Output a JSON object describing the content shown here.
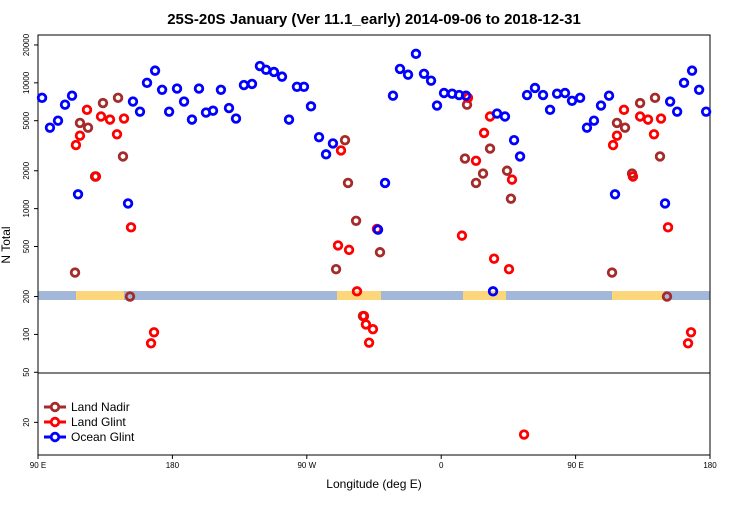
{
  "chart_data": {
    "type": "scatter",
    "title": "25S-20S January (Ver 11.1_early)   2014-09-06 to 2018-12-31",
    "x_label": "Longitude (deg E)",
    "y_label": "N Total",
    "xlim": [
      90,
      540
    ],
    "ylim": [
      11,
      24000
    ],
    "log_y": true,
    "legend": "bottom left",
    "xticks": [
      {
        "value": 90,
        "label": "90 E"
      },
      180,
      {
        "value": 270,
        "label": "90 W"
      },
      {
        "value": 360,
        "label": "0"
      },
      {
        "value": 450,
        "label": "90 E"
      },
      {
        "value": 540,
        "label": "180"
      }
    ],
    "yticks": [
      20,
      50,
      100,
      200,
      500,
      1000,
      2000,
      5000,
      10000,
      20000
    ],
    "series": [
      {
        "name": "Land Nadir",
        "color": "#a52a2a",
        "x": [
          114.8,
          118.1,
          123.5,
          128.2,
          133.5,
          143.6,
          146.9,
          151.6,
          295.6,
          297.6,
          303.0,
          289.6,
          307.6,
          319.0,
          377.3,
          375.9,
          383.3,
          388.0,
          392.7,
          404.1,
          406.7,
          474.4,
          477.7,
          483.1,
          487.8,
          493.2,
          503.2,
          506.5,
          511.2
        ],
        "values": [
          310,
          4800,
          4400,
          1800,
          6900,
          7600,
          2600,
          200,
          3500,
          1600,
          800,
          330,
          140,
          450,
          6700,
          2500,
          1600,
          1900,
          3000,
          2000,
          1200,
          310,
          4800,
          4400,
          1900,
          6900,
          7600,
          2600,
          200
        ]
      },
      {
        "name": "Land Glint",
        "color": "#ff0000",
        "x": [
          115.4,
          118.1,
          122.8,
          128.8,
          132.2,
          138.2,
          142.9,
          147.6,
          152.3,
          165.7,
          167.7,
          292.9,
          290.9,
          298.3,
          303.6,
          308.3,
          309.6,
          311.7,
          314.3,
          317.0,
          373.9,
          377.9,
          383.3,
          388.7,
          392.7,
          395.4,
          405.4,
          407.4,
          415.5,
          475.1,
          477.7,
          482.4,
          488.4,
          493.2,
          498.5,
          502.5,
          507.2,
          511.9,
          525.3,
          527.3
        ],
        "values": [
          3200,
          3800,
          6100,
          1800,
          5400,
          5100,
          3900,
          5200,
          710,
          85,
          104,
          2900,
          510,
          470,
          220,
          140,
          120,
          86,
          110,
          690,
          610,
          7600,
          2400,
          4000,
          5400,
          400,
          330,
          1700,
          16,
          3200,
          3800,
          6100,
          1800,
          5400,
          5100,
          3900,
          5200,
          710,
          85,
          104
        ]
      },
      {
        "name": "Ocean Glint",
        "color": "#0000ff",
        "x": [
          92.7,
          98.0,
          103.4,
          108.1,
          112.8,
          116.8,
          150.3,
          153.6,
          158.3,
          163.0,
          168.4,
          173.1,
          177.8,
          183.1,
          187.8,
          193.1,
          197.8,
          202.5,
          207.2,
          212.5,
          217.9,
          222.6,
          227.9,
          233.3,
          238.6,
          242.7,
          248.0,
          253.4,
          258.1,
          263.4,
          268.1,
          272.8,
          278.2,
          282.9,
          287.5,
          317.7,
          322.4,
          327.7,
          332.4,
          337.8,
          343.1,
          348.5,
          353.2,
          357.2,
          361.9,
          367.3,
          372.0,
          376.6,
          394.7,
          397.4,
          402.7,
          408.8,
          412.8,
          417.5,
          422.8,
          428.2,
          432.9,
          437.6,
          442.9,
          447.6,
          453.0,
          457.6,
          462.3,
          467.0,
          472.4,
          476.4,
          509.9,
          513.3,
          518.0,
          522.6,
          528.0,
          532.7,
          537.4
        ],
        "values": [
          7600,
          4400,
          5000,
          6700,
          7900,
          1300,
          1100,
          7100,
          5900,
          10000,
          12500,
          8800,
          5900,
          9000,
          7100,
          5100,
          9000,
          5800,
          6000,
          8800,
          6300,
          5200,
          9600,
          9800,
          13600,
          12700,
          12200,
          11200,
          5100,
          9300,
          9300,
          6500,
          3700,
          2700,
          3300,
          680,
          1600,
          7900,
          12900,
          11600,
          17000,
          11800,
          10400,
          6600,
          8300,
          8200,
          8000,
          7900,
          220,
          5700,
          5400,
          3500,
          2600,
          8000,
          9100,
          8000,
          6100,
          8200,
          8300,
          7200,
          7600,
          4400,
          5000,
          6600,
          7900,
          1300,
          1100,
          7100,
          5900,
          10000,
          12500,
          8800,
          5900
        ]
      }
    ]
  }
}
